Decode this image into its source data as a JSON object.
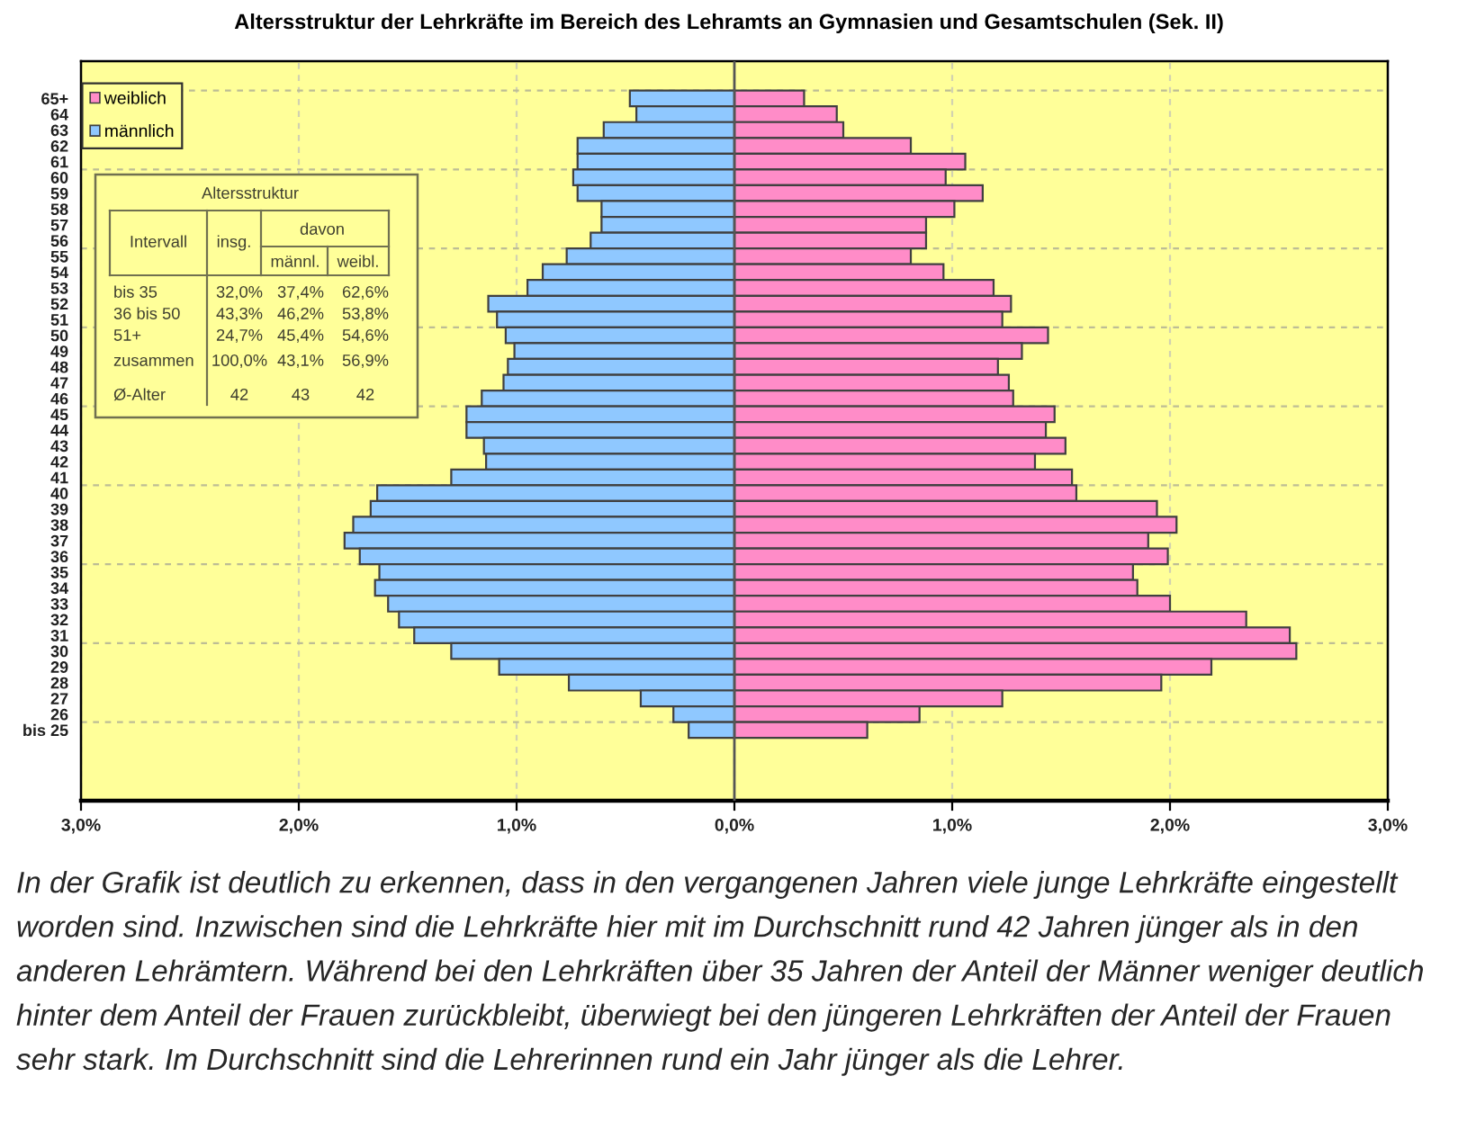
{
  "chart_data": {
    "type": "bar",
    "orientation": "horizontal",
    "stacked": true,
    "title": "Altersstruktur der Lehrkräfte im Bereich des Lehramts an Gymnasien und Gesamtschulen (Sek. II)",
    "categories": [
      "65+",
      "64",
      "63",
      "62",
      "61",
      "60",
      "59",
      "58",
      "57",
      "56",
      "55",
      "54",
      "53",
      "52",
      "51",
      "50",
      "49",
      "48",
      "47",
      "46",
      "45",
      "44",
      "43",
      "42",
      "41",
      "40",
      "39",
      "38",
      "37",
      "36",
      "35",
      "34",
      "33",
      "32",
      "31",
      "30",
      "29",
      "28",
      "27",
      "26",
      "bis 25"
    ],
    "series": [
      {
        "name": "weiblich",
        "color": "#ff8cc8",
        "values": [
          0.32,
          0.47,
          0.5,
          0.81,
          1.06,
          0.97,
          1.14,
          1.01,
          0.88,
          0.88,
          0.81,
          0.96,
          1.19,
          1.27,
          1.23,
          1.44,
          1.32,
          1.21,
          1.26,
          1.28,
          1.47,
          1.43,
          1.52,
          1.38,
          1.55,
          1.57,
          1.94,
          2.03,
          1.9,
          1.99,
          1.83,
          1.85,
          2.0,
          2.35,
          2.55,
          2.58,
          2.19,
          1.96,
          1.23,
          0.85,
          0.61
        ]
      },
      {
        "name": "männlich",
        "color": "#8fc8ff",
        "values": [
          -0.48,
          -0.45,
          -0.6,
          -0.72,
          -0.72,
          -0.74,
          -0.72,
          -0.61,
          -0.61,
          -0.66,
          -0.77,
          -0.88,
          -0.95,
          -1.13,
          -1.09,
          -1.05,
          -1.01,
          -1.04,
          -1.06,
          -1.16,
          -1.23,
          -1.23,
          -1.15,
          -1.14,
          -1.3,
          -1.64,
          -1.67,
          -1.75,
          -1.79,
          -1.72,
          -1.63,
          -1.65,
          -1.59,
          -1.54,
          -1.47,
          -1.3,
          -1.08,
          -0.76,
          -0.43,
          -0.28,
          -0.21
        ]
      }
    ],
    "xlim": [
      -3,
      3
    ],
    "xticks": [
      {
        "value": -3,
        "label": "3,0%"
      },
      {
        "value": -2,
        "label": "2,0%"
      },
      {
        "value": -1,
        "label": "1,0%"
      },
      {
        "value": 0,
        "label": "0,0%"
      },
      {
        "value": 1,
        "label": "1,0%"
      },
      {
        "value": 2,
        "label": "2,0%"
      },
      {
        "value": 3,
        "label": "3,0%"
      }
    ],
    "grid": true,
    "legend": "top left",
    "ref_lines": [
      {
        "axis": "x",
        "value": 0,
        "color": "#555555"
      }
    ],
    "annotations": [
      "Altersstruktur",
      "Intervall",
      "insg.",
      "davon",
      "männl.",
      "weibl.",
      "bis 35",
      "32,0%",
      "37,4%",
      "62,6%",
      "36 bis 50",
      "43,3%",
      "46,2%",
      "53,8%",
      "51+",
      "24,7%",
      "45,4%",
      "54,6%",
      "zusammen",
      "100,0%",
      "43,1%",
      "56,9%",
      "Ø-Alter",
      "42",
      "43",
      "42",
      "In der Grafik ist deutlich zu erkennen, dass in den vergangenen Jahren viele junge Lehrkräfte eingestellt worden sind. Inzwischen sind die Lehrkräfte hier mit im Durchschnitt rund 42 Jahren jünger als in den anderen Lehrämtern. Während bei den Lehrkräften über 35 Jahren der Anteil der Männer weniger deutlich hinter dem Anteil der Frauen zurückbleibt, überwiegt bei den jüngeren Lehrkräften der Anteil der Frauen sehr stark. Im Durchschnitt sind die Lehrerinnen rund ein Jahr jünger als die Lehrer."
    ]
  }
}
